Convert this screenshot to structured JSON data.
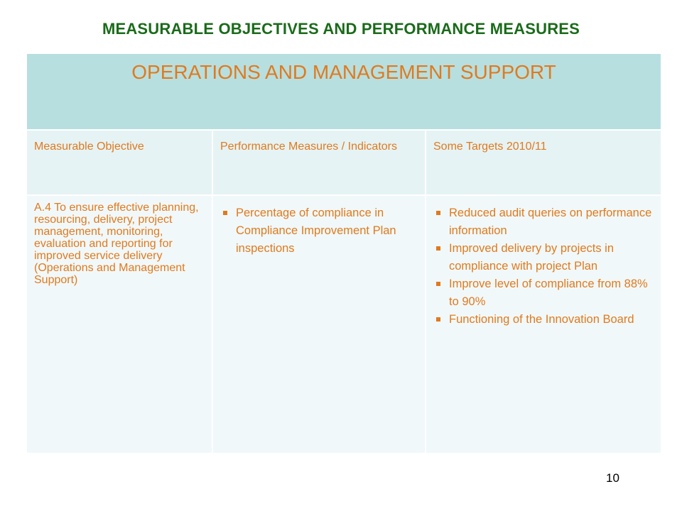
{
  "slide": {
    "title": "MEASURABLE OBJECTIVES AND PERFORMANCE MEASURES",
    "page_number": "10"
  },
  "table": {
    "banner": "OPERATIONS AND MANAGEMENT SUPPORT",
    "headers": [
      "Measurable Objective",
      "Performance Measures / Indicators",
      "Some Targets 2010/11"
    ],
    "row": {
      "objective": "A.4 To ensure effective planning, resourcing, delivery, project management, monitoring, evaluation and reporting for improved service delivery (Operations and Management Support)",
      "measures": [
        "Percentage of compliance in Compliance Improvement Plan inspections"
      ],
      "targets": [
        "Reduced audit queries on performance information",
        "Improved delivery by projects in compliance with project Plan",
        "Improve level of compliance from 88% to 90%",
        "Functioning of the Innovation Board"
      ]
    }
  },
  "colors": {
    "title_green": "#1a6b1a",
    "accent_orange": "#e07a1e",
    "banner_bg": "#b7dfe0",
    "header_bg": "#e6f3f4",
    "body_bg": "#f1f8f9"
  }
}
